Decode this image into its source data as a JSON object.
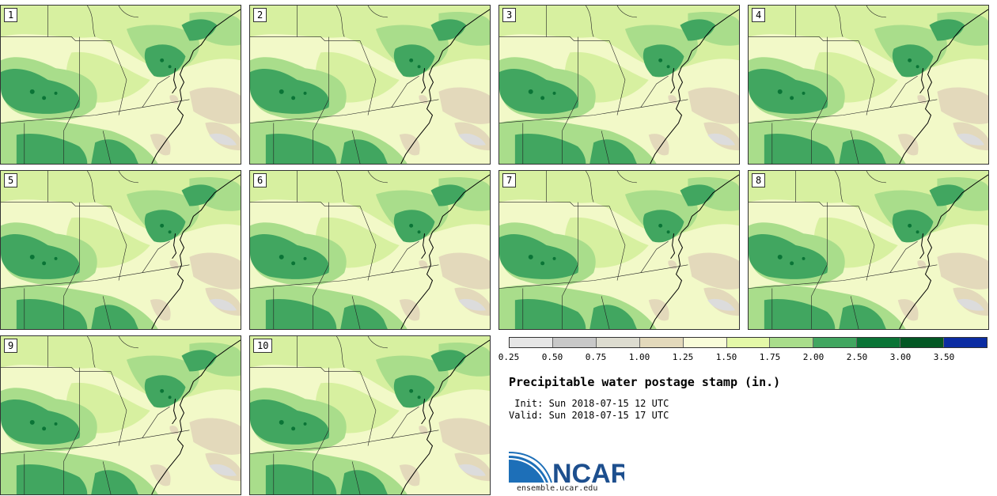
{
  "panels": [
    {
      "label": "1"
    },
    {
      "label": "2"
    },
    {
      "label": "3"
    },
    {
      "label": "4"
    },
    {
      "label": "5"
    },
    {
      "label": "6"
    },
    {
      "label": "7"
    },
    {
      "label": "8"
    },
    {
      "label": "9"
    },
    {
      "label": "10"
    }
  ],
  "legend": {
    "title": "Precipitable water postage stamp (in.)",
    "ticks": [
      "0.25",
      "0.50",
      "0.75",
      "1.00",
      "1.25",
      "1.50",
      "1.75",
      "2.00",
      "2.50",
      "3.00",
      "3.50"
    ],
    "colors": [
      "#e6e6e6",
      "#c8c8c8",
      "#dddcd0",
      "#e3d9bb",
      "#f8fcd9",
      "#e4f8a8",
      "#a9dd8b",
      "#41a660",
      "#0a7436",
      "#035724",
      "#0b2ca2"
    ]
  },
  "init_line": " Init: Sun 2018-07-15 12 UTC",
  "valid_line": "Valid: Sun 2018-07-15 17 UTC",
  "logo": {
    "text": "NCAR",
    "url": "ensemble.ucar.edu"
  }
}
